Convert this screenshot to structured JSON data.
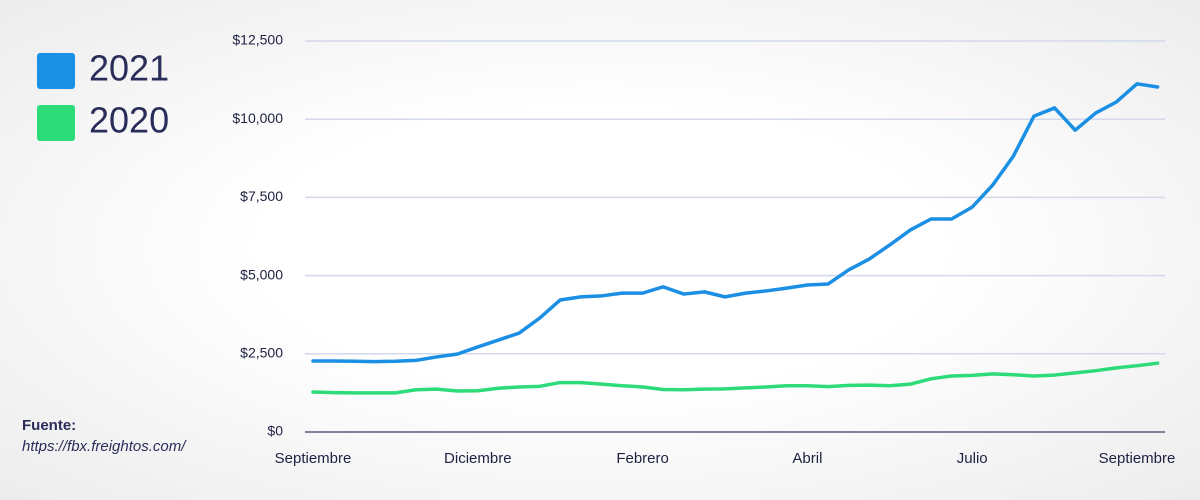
{
  "chart_data": {
    "type": "line",
    "categories": [
      "Septiembre",
      null,
      null,
      null,
      null,
      null,
      null,
      null,
      "Diciembre",
      null,
      null,
      null,
      null,
      null,
      null,
      null,
      "Febrero",
      null,
      null,
      null,
      null,
      null,
      null,
      null,
      "Abril",
      null,
      null,
      null,
      null,
      null,
      null,
      null,
      "Julio",
      null,
      null,
      null,
      null,
      null,
      null,
      null,
      "Septiembre",
      null
    ],
    "series": [
      {
        "name": "2021",
        "color": "#1a8fe3",
        "values": [
          2270,
          2270,
          2260,
          2250,
          2260,
          2290,
          2400,
          2490,
          2720,
          2940,
          3160,
          3640,
          4220,
          4320,
          4350,
          4440,
          4440,
          4640,
          4410,
          4480,
          4320,
          4440,
          4510,
          4600,
          4700,
          4730,
          5180,
          5530,
          5980,
          6460,
          6810,
          6810,
          7190,
          7900,
          8820,
          10100,
          10360,
          9650,
          10200,
          10550,
          11130,
          11030
        ]
      },
      {
        "name": "2020",
        "color": "#2ddb79",
        "values": [
          1280,
          1260,
          1250,
          1250,
          1250,
          1350,
          1370,
          1310,
          1320,
          1400,
          1440,
          1460,
          1580,
          1580,
          1530,
          1480,
          1440,
          1360,
          1350,
          1370,
          1380,
          1410,
          1440,
          1480,
          1480,
          1450,
          1490,
          1500,
          1480,
          1530,
          1700,
          1790,
          1810,
          1860,
          1830,
          1790,
          1820,
          1890,
          1960,
          2050,
          2120,
          2200
        ]
      }
    ],
    "ylim": [
      0,
      12500
    ],
    "yticks": [
      {
        "value": 0,
        "label": "$0"
      },
      {
        "value": 2500,
        "label": "$2,500"
      },
      {
        "value": 5000,
        "label": "$5,000"
      },
      {
        "value": 7500,
        "label": "$7,500"
      },
      {
        "value": 10000,
        "label": "$10,000"
      },
      {
        "value": 12500,
        "label": "$12,500"
      }
    ],
    "grid": true,
    "source_label": "Fuente:",
    "source_url": "https://fbx.freightos.com/"
  }
}
